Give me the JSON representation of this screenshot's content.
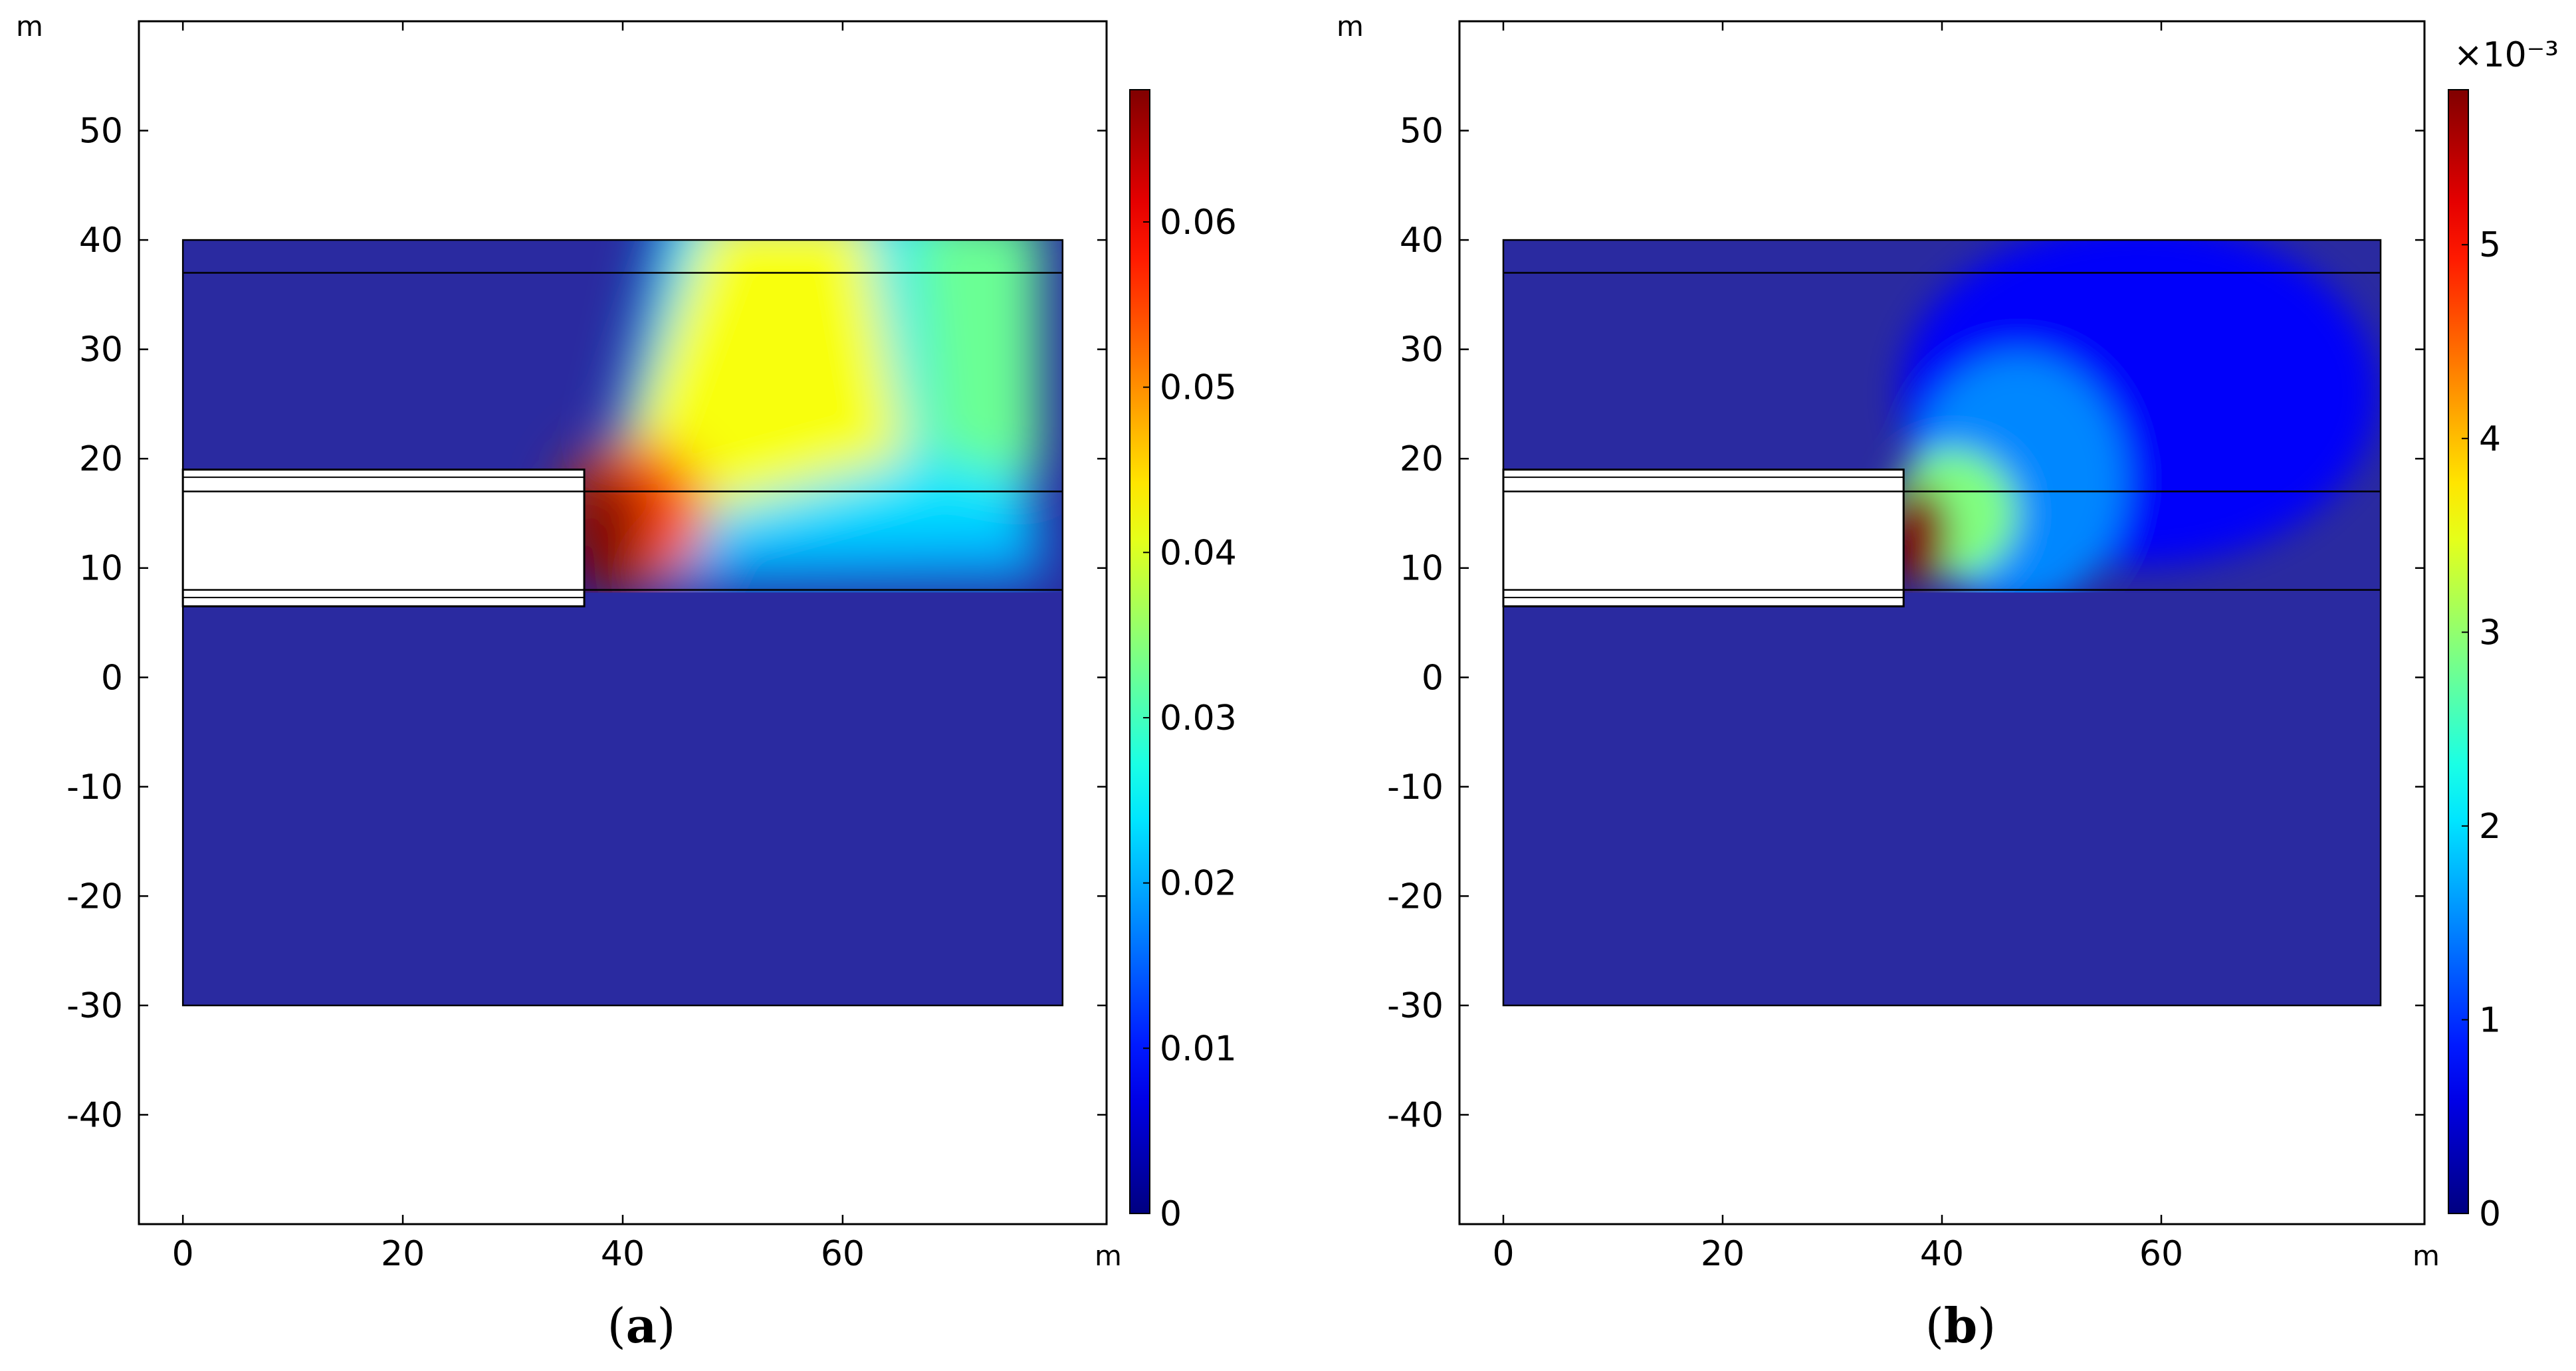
{
  "chart_data": [
    {
      "type": "heatmap",
      "panel_label": "a",
      "x_unit": "m",
      "y_unit": "m",
      "xlim": [
        -4,
        84
      ],
      "ylim": [
        -50,
        60
      ],
      "x_ticks": [
        0,
        20,
        40,
        60
      ],
      "y_ticks": [
        50,
        40,
        30,
        20,
        10,
        0,
        -10,
        -20,
        -30,
        -40
      ],
      "x_tick_labels": [
        "0",
        "20",
        "40",
        "60"
      ],
      "y_tick_labels": [
        "50",
        "40",
        "30",
        "20",
        "10",
        "0",
        "-10",
        "-20",
        "-30",
        "-40"
      ],
      "domain": {
        "x": [
          0,
          80
        ],
        "y": [
          -30,
          40
        ]
      },
      "excavation": {
        "x": [
          0,
          36.5
        ],
        "y": [
          6.5,
          19
        ]
      },
      "layer_boundaries_y": [
        37,
        17,
        8
      ],
      "colorbar": {
        "min": 0,
        "max": 0.068,
        "ticks": [
          0,
          0.01,
          0.02,
          0.03,
          0.04,
          0.05,
          0.06
        ],
        "tick_labels": [
          "0",
          "0.01",
          "0.02",
          "0.03",
          "0.04",
          "0.05",
          "0.06"
        ],
        "multiplier": ""
      },
      "colormap": "jet",
      "hotspot": {
        "x": 37.5,
        "y": 13,
        "value": 0.068
      },
      "secondary_level": 0.042
    },
    {
      "type": "heatmap",
      "panel_label": "b",
      "x_unit": "m",
      "y_unit": "m",
      "xlim": [
        -4,
        84
      ],
      "ylim": [
        -50,
        60
      ],
      "x_ticks": [
        0,
        20,
        40,
        60
      ],
      "y_ticks": [
        50,
        40,
        30,
        20,
        10,
        0,
        -10,
        -20,
        -30,
        -40
      ],
      "x_tick_labels": [
        "0",
        "20",
        "40",
        "60"
      ],
      "y_tick_labels": [
        "50",
        "40",
        "30",
        "20",
        "10",
        "0",
        "-10",
        "-20",
        "-30",
        "-40"
      ],
      "domain": {
        "x": [
          0,
          80
        ],
        "y": [
          -30,
          40
        ]
      },
      "excavation": {
        "x": [
          0,
          36.5
        ],
        "y": [
          6.5,
          19
        ]
      },
      "layer_boundaries_y": [
        37,
        17,
        8
      ],
      "colorbar": {
        "min": 0,
        "max": 5.8,
        "ticks": [
          0,
          1,
          2,
          3,
          4,
          5
        ],
        "tick_labels": [
          "0",
          "1",
          "2",
          "3",
          "4",
          "5"
        ],
        "multiplier": "×10⁻³"
      },
      "colormap": "jet",
      "hotspot": {
        "x": 37.5,
        "y": 13,
        "value": 5.8
      },
      "secondary_level": 0.0012
    }
  ]
}
